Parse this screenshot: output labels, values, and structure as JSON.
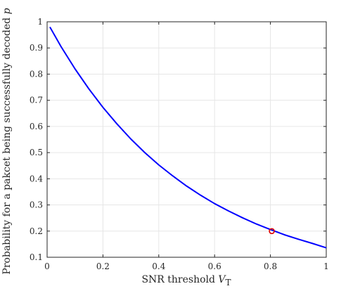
{
  "chart_data": {
    "type": "line",
    "xlabel": {
      "prefix": "SNR threshold ",
      "symbol": "V",
      "subscript": "T"
    },
    "ylabel": {
      "text": "Probability for a pakcet being successfully decoded ",
      "symbol": "p"
    },
    "xlim": [
      0,
      1
    ],
    "ylim": [
      0.1,
      1
    ],
    "xticks": [
      0,
      0.2,
      0.4,
      0.6,
      0.8,
      1
    ],
    "xtick_labels": [
      "0",
      "0.2",
      "0.4",
      "0.6",
      "0.8",
      "1"
    ],
    "yticks": [
      0.1,
      0.2,
      0.3,
      0.4,
      0.5,
      0.6,
      0.7,
      0.8,
      0.9,
      1
    ],
    "ytick_labels": [
      "0.1",
      "0.2",
      "0.3",
      "0.4",
      "0.5",
      "0.6",
      "0.7",
      "0.8",
      "0.9",
      "1"
    ],
    "grid": true,
    "series": [
      {
        "color": "#0000ff",
        "x": [
          0.01,
          0.05,
          0.1,
          0.15,
          0.2,
          0.25,
          0.3,
          0.35,
          0.4,
          0.45,
          0.5,
          0.55,
          0.6,
          0.65,
          0.7,
          0.75,
          0.8,
          0.85,
          0.9,
          0.95,
          1.0
        ],
        "y": [
          0.98,
          0.905,
          0.82,
          0.743,
          0.673,
          0.61,
          0.552,
          0.5,
          0.453,
          0.411,
          0.372,
          0.337,
          0.305,
          0.277,
          0.251,
          0.227,
          0.206,
          0.186,
          0.169,
          0.153,
          0.136
        ]
      }
    ],
    "marker": {
      "x": 0.805,
      "y": 0.2,
      "color": "#e00000",
      "shape": "circle"
    }
  }
}
